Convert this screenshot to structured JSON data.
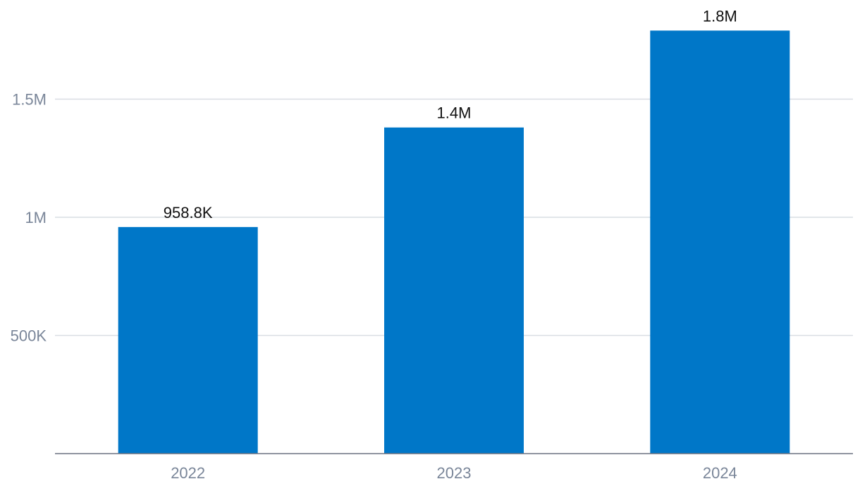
{
  "chart_data": {
    "type": "bar",
    "categories": [
      "2022",
      "2023",
      "2024"
    ],
    "values": [
      958800,
      1380000,
      1790000
    ],
    "data_labels": [
      "958.8K",
      "1.4M",
      "1.8M"
    ],
    "title": "",
    "xlabel": "",
    "ylabel": "",
    "ylim": [
      0,
      1850000
    ],
    "y_ticks": [
      {
        "value": 500000,
        "label": "500K"
      },
      {
        "value": 1000000,
        "label": "1M"
      },
      {
        "value": 1500000,
        "label": "1.5M"
      }
    ],
    "grid": true,
    "legend": "none",
    "colors": {
      "bar": "#0077c8",
      "grid": "#d9dde3",
      "axis": "#6b7280",
      "tick_text": "#7a8699",
      "label_text": "#111111"
    }
  }
}
